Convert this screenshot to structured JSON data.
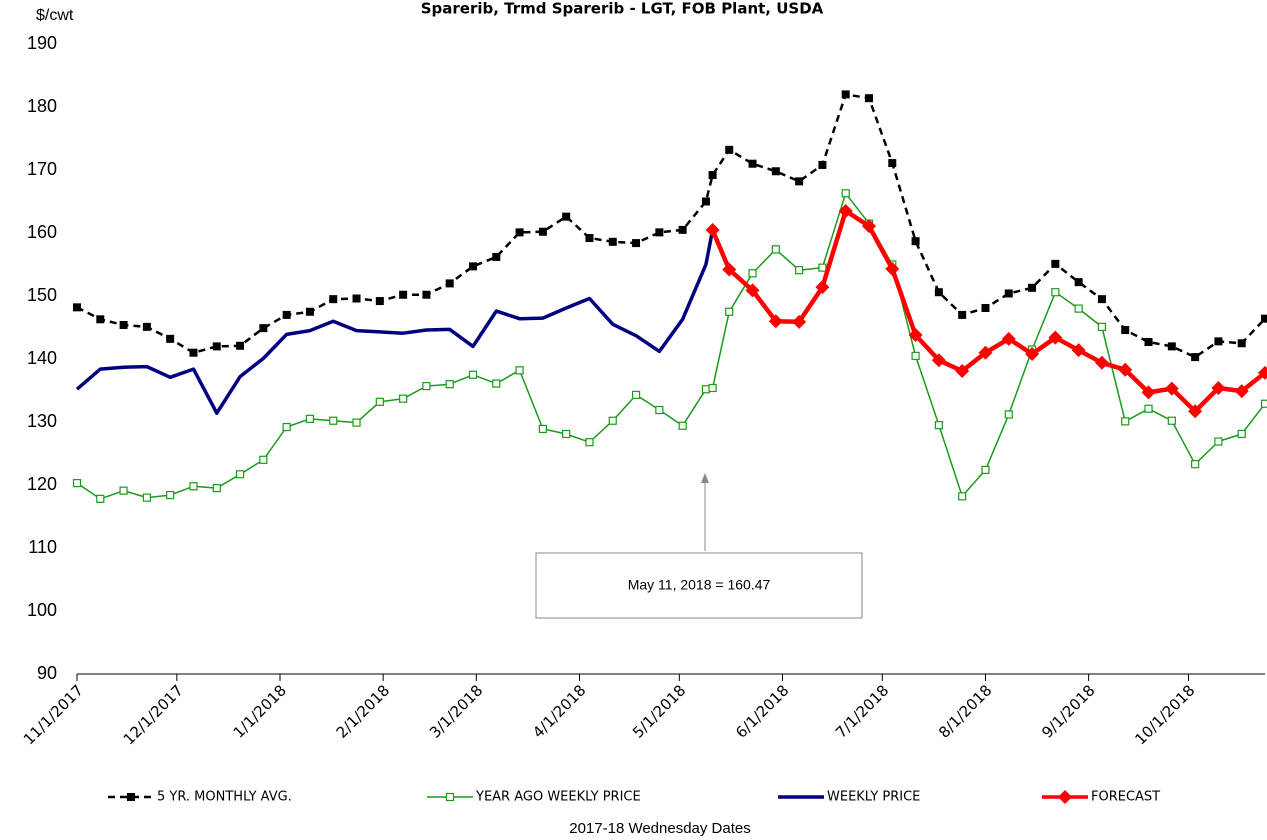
{
  "chart_data": {
    "type": "line",
    "title": "Sparerib, Trmd Sparerib - LGT, FOB Plant, USDA",
    "y_label": "$/cwt",
    "x_label": "2017-18 Wednesday Dates",
    "annotation": "May 11, 2018  = 160.47",
    "x": [
      "2017-11-01",
      "2017-11-08",
      "2017-11-15",
      "2017-11-22",
      "2017-11-29",
      "2017-12-06",
      "2017-12-13",
      "2017-12-20",
      "2017-12-27",
      "2018-01-03",
      "2018-01-10",
      "2018-01-17",
      "2018-01-24",
      "2018-01-31",
      "2018-02-07",
      "2018-02-14",
      "2018-02-21",
      "2018-02-28",
      "2018-03-07",
      "2018-03-14",
      "2018-03-21",
      "2018-03-28",
      "2018-04-04",
      "2018-04-11",
      "2018-04-18",
      "2018-04-25",
      "2018-05-02",
      "2018-05-09",
      "2018-05-11",
      "2018-05-16",
      "2018-05-23",
      "2018-05-30",
      "2018-06-06",
      "2018-06-13",
      "2018-06-20",
      "2018-06-27",
      "2018-07-04",
      "2018-07-11",
      "2018-07-18",
      "2018-07-25",
      "2018-08-01",
      "2018-08-08",
      "2018-08-15",
      "2018-08-22",
      "2018-08-29",
      "2018-09-05",
      "2018-09-12",
      "2018-09-19",
      "2018-09-26",
      "2018-10-03",
      "2018-10-10",
      "2018-10-17",
      "2018-10-24"
    ],
    "series": [
      {
        "name": "5 YR. MONTHLY AVG.",
        "color": "#000000",
        "marker": "square",
        "dash": true,
        "width": 2.5,
        "values": [
          148.2,
          146.3,
          145.4,
          145.1,
          143.2,
          141.0,
          142.0,
          142.1,
          144.9,
          147.0,
          147.5,
          149.5,
          149.6,
          149.2,
          150.2,
          150.2,
          152.0,
          154.7,
          156.2,
          160.1,
          160.2,
          162.6,
          159.2,
          158.6,
          158.4,
          160.1,
          160.5,
          165.0,
          169.2,
          173.2,
          171.0,
          169.8,
          168.2,
          170.8,
          182.0,
          181.4,
          171.1,
          158.7,
          150.6,
          147.0,
          148.1,
          150.4,
          151.3,
          155.1,
          152.2,
          149.5,
          144.6,
          142.7,
          142.0,
          140.3,
          142.8,
          142.5,
          146.4
        ]
      },
      {
        "name": "YEAR AGO WEEKLY PRICE",
        "color": "#1a9a1a",
        "marker": "hollow-square",
        "dash": false,
        "width": 1.5,
        "values": [
          120.3,
          117.8,
          119.1,
          118.0,
          118.4,
          119.8,
          119.5,
          121.7,
          124.0,
          129.2,
          130.5,
          130.2,
          129.9,
          133.2,
          133.7,
          135.7,
          136.0,
          137.5,
          136.1,
          138.2,
          128.9,
          128.1,
          126.8,
          130.2,
          134.3,
          131.9,
          129.4,
          135.2,
          135.4,
          147.5,
          153.6,
          157.4,
          154.1,
          154.5,
          166.3,
          161.5,
          155.0,
          140.5,
          129.5,
          118.2,
          122.4,
          131.2,
          141.5,
          150.6,
          148.0,
          145.1,
          130.1,
          132.1,
          130.2,
          123.3,
          126.9,
          128.1,
          132.9
        ]
      },
      {
        "name": "WEEKLY PRICE",
        "color": "#000080",
        "marker": "none",
        "dash": false,
        "width": 3.5,
        "values": [
          135.2,
          138.4,
          138.7,
          138.8,
          137.1,
          138.4,
          131.4,
          137.2,
          140.1,
          143.9,
          144.5,
          146.0,
          144.5,
          144.3,
          144.1,
          144.6,
          144.7,
          142.0,
          147.6,
          146.4,
          146.5,
          148.1,
          149.6,
          145.5,
          143.7,
          141.2,
          146.3,
          155.0,
          160.47,
          null,
          null,
          null,
          null,
          null,
          null,
          null,
          null,
          null,
          null,
          null,
          null,
          null,
          null,
          null,
          null,
          null,
          null,
          null,
          null,
          null,
          null,
          null,
          null
        ]
      },
      {
        "name": "FORECAST",
        "color": "#ff0000",
        "marker": "diamond",
        "dash": false,
        "width": 4.5,
        "values": [
          null,
          null,
          null,
          null,
          null,
          null,
          null,
          null,
          null,
          null,
          null,
          null,
          null,
          null,
          null,
          null,
          null,
          null,
          null,
          null,
          null,
          null,
          null,
          null,
          null,
          null,
          null,
          null,
          160.47,
          154.2,
          150.9,
          146.0,
          145.9,
          151.4,
          163.5,
          161.1,
          154.3,
          143.8,
          139.8,
          138.1,
          141.0,
          143.2,
          140.8,
          143.4,
          141.4,
          139.4,
          138.3,
          134.7,
          135.3,
          131.7,
          135.4,
          134.9,
          137.8
        ]
      }
    ],
    "xlim": [
      "2017-11-01",
      "2018-10-24"
    ],
    "xticks": [
      {
        "value": "2017-11-01",
        "label": "11/1/2017"
      },
      {
        "value": "2017-12-01",
        "label": "12/1/2017"
      },
      {
        "value": "2018-01-01",
        "label": "1/1/2018"
      },
      {
        "value": "2018-02-01",
        "label": "2/1/2018"
      },
      {
        "value": "2018-03-01",
        "label": "3/1/2018"
      },
      {
        "value": "2018-04-01",
        "label": "4/1/2018"
      },
      {
        "value": "2018-05-01",
        "label": "5/1/2018"
      },
      {
        "value": "2018-06-01",
        "label": "6/1/2018"
      },
      {
        "value": "2018-07-01",
        "label": "7/1/2018"
      },
      {
        "value": "2018-08-01",
        "label": "8/1/2018"
      },
      {
        "value": "2018-09-01",
        "label": "9/1/2018"
      },
      {
        "value": "2018-10-01",
        "label": "10/1/2018"
      }
    ],
    "ylim": [
      90,
      190
    ],
    "yticks": [
      90,
      100,
      110,
      120,
      130,
      140,
      150,
      160,
      170,
      180,
      190
    ],
    "grid": false
  }
}
